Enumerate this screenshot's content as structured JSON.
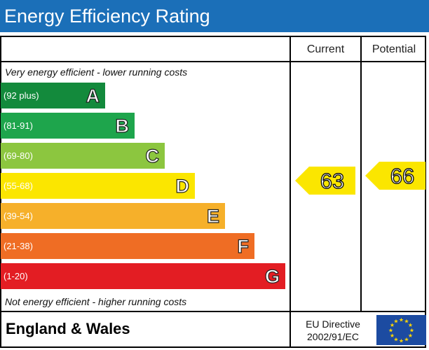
{
  "header": {
    "title": "Energy Efficiency Rating"
  },
  "columns": {
    "current": "Current",
    "potential": "Potential"
  },
  "notes": {
    "top": "Very energy efficient - lower running costs",
    "bottom": "Not energy efficient - higher running costs"
  },
  "bands": [
    {
      "range": "(92 plus)",
      "letter": "A",
      "color": "#138a3c"
    },
    {
      "range": "(81-91)",
      "letter": "B",
      "color": "#1ea54c"
    },
    {
      "range": "(69-80)",
      "letter": "C",
      "color": "#8cc63f"
    },
    {
      "range": "(55-68)",
      "letter": "D",
      "color": "#fbe600"
    },
    {
      "range": "(39-54)",
      "letter": "E",
      "color": "#f6b02a"
    },
    {
      "range": "(21-38)",
      "letter": "F",
      "color": "#ef6d24"
    },
    {
      "range": "(1-20)",
      "letter": "G",
      "color": "#e31d23"
    }
  ],
  "ratings": {
    "current": "63",
    "potential": "66",
    "arrow_color": "#fbe600"
  },
  "footer": {
    "region": "England & Wales",
    "directive_line1": "EU Directive",
    "directive_line2": "2002/91/EC"
  },
  "icons": {
    "flag": "eu-flag-icon"
  }
}
